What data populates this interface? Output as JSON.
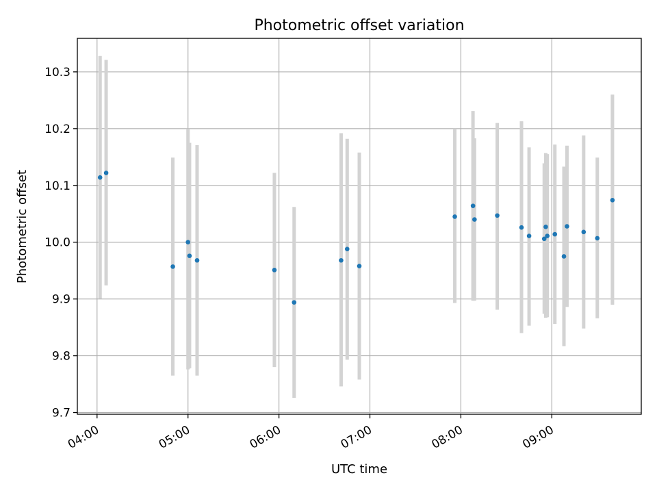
{
  "chart_data": {
    "type": "scatter",
    "title": "Photometric offset variation",
    "xlabel": "UTC time",
    "ylabel": "Photometric offset",
    "x_ticks": [
      "04:00",
      "05:00",
      "06:00",
      "07:00",
      "08:00",
      "09:00"
    ],
    "y_ticks": [
      "9.7",
      "9.8",
      "9.9",
      "10.0",
      "10.1",
      "10.2",
      "10.3"
    ],
    "xlim": [
      "03:47",
      "09:59"
    ],
    "ylim": [
      9.697,
      10.359
    ],
    "grid": true,
    "errorbar_color": "#d3d3d3",
    "point_color": "#1f77b4",
    "series": [
      {
        "x": [
          "04:02",
          "04:06",
          "04:50",
          "05:00",
          "05:01",
          "05:06",
          "05:57",
          "06:10",
          "06:41",
          "06:45",
          "06:53",
          "07:56",
          "08:08",
          "08:09",
          "08:24",
          "08:40",
          "08:45",
          "08:55",
          "08:56",
          "08:57",
          "09:02",
          "09:08",
          "09:10",
          "09:21",
          "09:30",
          "09:40"
        ],
        "y": [
          10.114,
          10.122,
          9.957,
          10.0,
          9.976,
          9.968,
          9.951,
          9.894,
          9.968,
          9.988,
          9.958,
          10.045,
          10.064,
          10.04,
          10.047,
          10.026,
          10.011,
          10.006,
          10.027,
          10.011,
          10.014,
          9.975,
          10.028,
          10.018,
          10.007,
          10.074
        ],
        "err_low": [
          9.901,
          9.924,
          9.765,
          9.776,
          9.778,
          9.765,
          9.78,
          9.726,
          9.746,
          9.793,
          9.758,
          9.893,
          9.897,
          9.897,
          9.881,
          9.84,
          9.853,
          9.874,
          9.867,
          9.868,
          9.856,
          9.817,
          9.886,
          9.848,
          9.866,
          9.89
        ],
        "err_high": [
          10.328,
          10.321,
          10.149,
          10.2,
          10.175,
          10.171,
          10.122,
          10.062,
          10.192,
          10.182,
          10.158,
          10.2,
          10.231,
          10.183,
          10.21,
          10.213,
          10.167,
          10.139,
          10.157,
          10.155,
          10.172,
          10.133,
          10.17,
          10.188,
          10.149,
          10.26
        ]
      }
    ]
  }
}
